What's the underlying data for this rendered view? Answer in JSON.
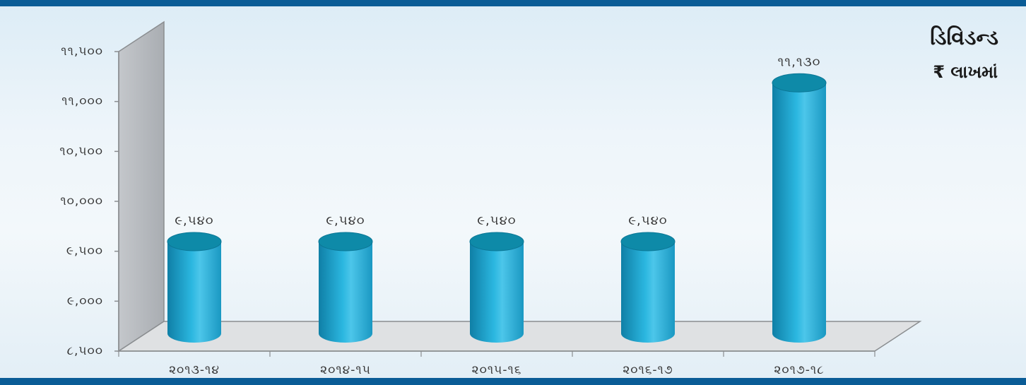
{
  "colors": {
    "band": "#0a5c96",
    "bar_body": "#1fa9d4",
    "bar_top": "#0e8aa8",
    "back_wall": "#b8bcc1",
    "floor": "#dfe1e3",
    "axis_line": "#8a8d90"
  },
  "chart_data": {
    "type": "bar",
    "style": "3d-cylinder",
    "title": "ડિવિડન્ડ",
    "subtitle": "₹ લાખમાં",
    "xlabel": "",
    "ylabel": "",
    "ylim": [
      8500,
      11500
    ],
    "yticks": [
      8500,
      9000,
      9500,
      10000,
      10500,
      11000,
      11500
    ],
    "ytick_labels": [
      "૮,૫૦૦",
      "૯,૦૦૦",
      "૯,૫૦૦",
      "૧૦,૦૦૦",
      "૧૦,૫૦૦",
      "૧૧,૦૦૦",
      "૧૧,૫૦૦"
    ],
    "categories": [
      "૨૦૧૩-૧૪",
      "૨૦૧૪-૧૫",
      "૨૦૧૫-૧૬",
      "૨૦૧૬-૧૭",
      "૨૦૧૭-૧૮"
    ],
    "values": [
      9540,
      9540,
      9540,
      9540,
      11130
    ],
    "data_labels": [
      "૯,૫૪૦",
      "૯,૫૪૦",
      "૯,૫૪૦",
      "૯,૫૪૦",
      "૧૧,૧૩૦"
    ],
    "grid": false,
    "legend": "none"
  }
}
